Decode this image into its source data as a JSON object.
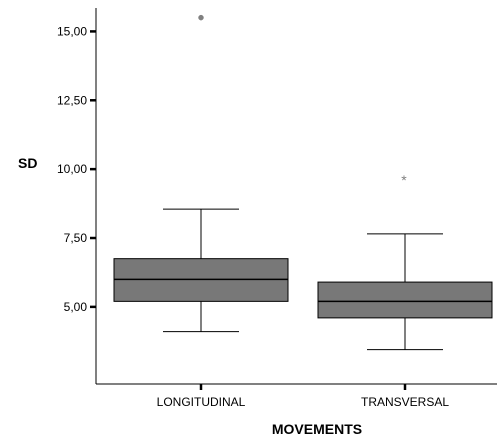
{
  "chart_data": {
    "type": "box",
    "title": "",
    "xlabel": "MOVEMENTS",
    "ylabel": "SD",
    "ylim": [
      2.2,
      15.85
    ],
    "y_ticks": [
      5.0,
      7.5,
      10.0,
      12.5,
      15.0
    ],
    "y_tick_labels": [
      "5,00",
      "7,50",
      "10,00",
      "12,50",
      "15,00"
    ],
    "grid": false,
    "categories": [
      "LONGITUDINAL",
      "TRANSVERSAL"
    ],
    "boxes": [
      {
        "category": "LONGITUDINAL",
        "whisker_low": 4.1,
        "q1": 5.2,
        "median": 6.0,
        "q3": 6.75,
        "whisker_high": 8.55,
        "outliers": [
          15.5
        ],
        "outlier_labels": [
          "o"
        ]
      },
      {
        "category": "TRANSVERSAL",
        "whisker_low": 3.45,
        "q1": 4.6,
        "median": 5.2,
        "q3": 5.9,
        "whisker_high": 7.65,
        "outliers": [
          9.65
        ],
        "outlier_labels": [
          "*"
        ]
      }
    ],
    "colors": {
      "box_fill": "#787878",
      "line": "#000000",
      "outlier": "#808080",
      "background": "#ffffff"
    }
  }
}
